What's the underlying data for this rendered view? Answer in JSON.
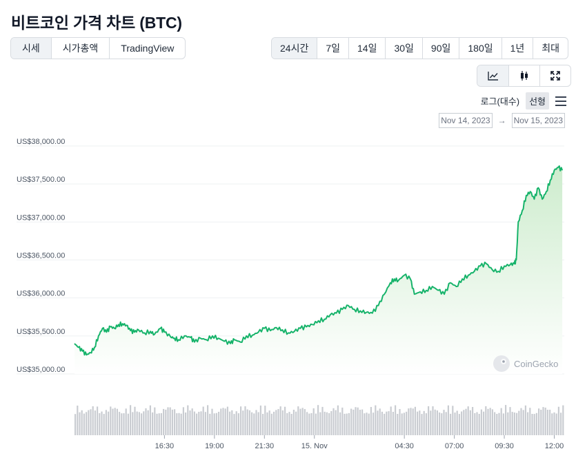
{
  "title": "비트코인 가격 차트 (BTC)",
  "view_tabs": [
    {
      "label": "시세",
      "active": true
    },
    {
      "label": "시가총액",
      "active": false
    },
    {
      "label": "TradingView",
      "active": false
    }
  ],
  "range_tabs": [
    {
      "label": "24시간",
      "active": true
    },
    {
      "label": "7일",
      "active": false
    },
    {
      "label": "14일",
      "active": false
    },
    {
      "label": "30일",
      "active": false
    },
    {
      "label": "90일",
      "active": false
    },
    {
      "label": "180일",
      "active": false
    },
    {
      "label": "1년",
      "active": false
    },
    {
      "label": "최대",
      "active": false
    }
  ],
  "chart_types": [
    {
      "icon": "line-chart-icon",
      "active": true
    },
    {
      "icon": "candlestick-icon",
      "active": false
    },
    {
      "icon": "expand-icon",
      "active": false
    }
  ],
  "scale": {
    "log_label": "로그(대수)",
    "linear_label": "선형",
    "selected": "선형"
  },
  "date_range": {
    "from": "Nov 14, 2023",
    "arrow": "→",
    "to": "Nov 15, 2023"
  },
  "watermark": "CoinGecko",
  "colors": {
    "line": "#16b36a",
    "fill_top": "#cdeccd",
    "fill_bottom": "#ffffff",
    "volume": "#c9ccd1",
    "grid": "#eef0f2"
  },
  "chart_data": {
    "type": "area",
    "y_tick_labels": [
      "US$38,000.00",
      "US$37,500.00",
      "US$37,000.00",
      "US$36,500.00",
      "US$36,000.00",
      "US$35,500.00",
      "US$35,000.00"
    ],
    "y_ticks": [
      38000,
      37500,
      37000,
      36500,
      36000,
      35500,
      35000
    ],
    "ylim": [
      35000,
      38000
    ],
    "x_tick_labels": [
      "16:30",
      "19:00",
      "21:30",
      "15. Nov",
      "04:30",
      "07:00",
      "09:30",
      "12:00"
    ],
    "x_ticks": [
      16.5,
      19.0,
      21.5,
      24.0,
      28.5,
      31.0,
      33.5,
      36.0
    ],
    "xlim": [
      12.0,
      36.5
    ],
    "x_unit": "hours from Nov 14, 2023 00:00",
    "grid": true,
    "series": [
      {
        "x": [
          12.0,
          12.2,
          12.4,
          12.6,
          12.8,
          13.0,
          13.2,
          13.4,
          13.6,
          13.8,
          14.0,
          14.2,
          14.4,
          14.6,
          14.8,
          15.0,
          15.2,
          15.5,
          15.8,
          16.0,
          16.3,
          16.5,
          16.8,
          17.0,
          17.2,
          17.5,
          17.8,
          18.0,
          18.3,
          18.6,
          18.9,
          19.2,
          19.5,
          19.8,
          20.0,
          20.3,
          20.6,
          20.9,
          21.2,
          21.5,
          21.8,
          22.1,
          22.4,
          22.7,
          23.0,
          23.3,
          23.6,
          23.9,
          24.2,
          24.5,
          24.8,
          25.1,
          25.4,
          25.7,
          26.0,
          26.3,
          26.6,
          26.9,
          27.2,
          27.5,
          27.8,
          28.0,
          28.2,
          28.5,
          28.8,
          29.0,
          29.3,
          29.6,
          29.9,
          30.2,
          30.5,
          30.8,
          31.1,
          31.4,
          31.7,
          32.0,
          32.3,
          32.6,
          32.9,
          33.2,
          33.5,
          33.8,
          34.0,
          34.1,
          34.2,
          34.4,
          34.6,
          34.8,
          35.0,
          35.2,
          35.4,
          35.6,
          35.8,
          36.0,
          36.2,
          36.4
        ],
        "values": [
          35400,
          35350,
          35300,
          35250,
          35280,
          35350,
          35500,
          35600,
          35550,
          35620,
          35600,
          35650,
          35660,
          35640,
          35570,
          35550,
          35580,
          35540,
          35560,
          35520,
          35600,
          35550,
          35490,
          35470,
          35450,
          35500,
          35480,
          35420,
          35470,
          35450,
          35500,
          35470,
          35430,
          35400,
          35450,
          35420,
          35500,
          35510,
          35550,
          35600,
          35570,
          35610,
          35580,
          35540,
          35560,
          35600,
          35620,
          35650,
          35700,
          35720,
          35780,
          35800,
          35850,
          35900,
          35850,
          35830,
          35810,
          35800,
          35900,
          36050,
          36200,
          36250,
          36230,
          36300,
          36250,
          36050,
          36080,
          36100,
          36150,
          36100,
          36050,
          36200,
          36150,
          36250,
          36300,
          36350,
          36420,
          36450,
          36370,
          36350,
          36420,
          36440,
          36450,
          36500,
          37000,
          37150,
          37350,
          37400,
          37300,
          37450,
          37300,
          37400,
          37550,
          37680,
          37720,
          37680
        ]
      }
    ],
    "volume_shown": true
  }
}
